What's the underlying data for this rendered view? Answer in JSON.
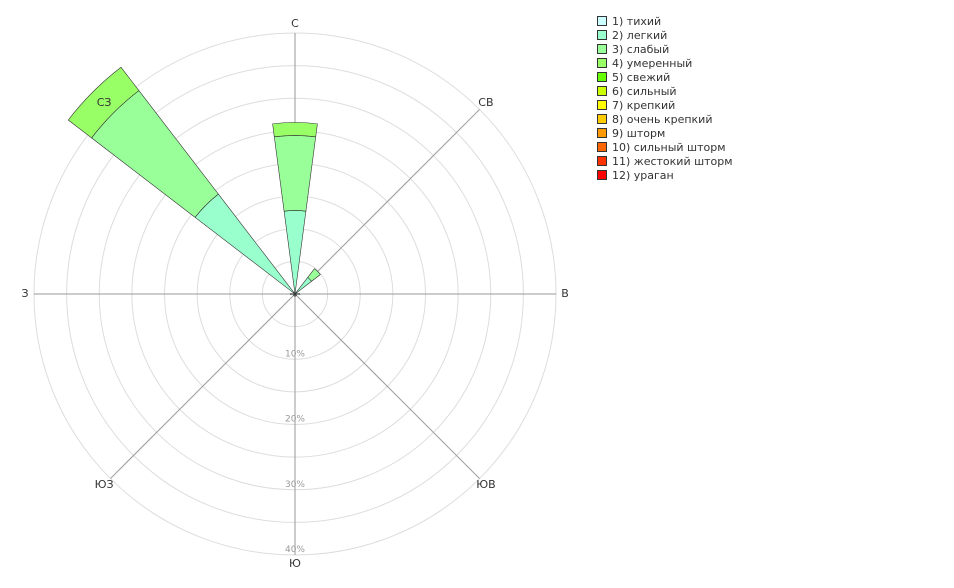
{
  "chart_data": {
    "type": "windrose",
    "rmax": 40,
    "ring_values": [
      10,
      20,
      30,
      40
    ],
    "ring_labels": [
      "10%",
      "20%",
      "30%",
      "40%"
    ],
    "directions": [
      "С",
      "СВ",
      "В",
      "ЮВ",
      "Ю",
      "ЮЗ",
      "З",
      "СЗ"
    ],
    "direction_angles_deg": [
      0,
      45,
      90,
      135,
      180,
      225,
      270,
      315
    ],
    "legend_position": "right",
    "series": [
      {
        "name": "1) тихий",
        "color": "#ccffff",
        "values": [
          0.3,
          0.2,
          0.2,
          0.1,
          0.1,
          0.1,
          0.2,
          0.3
        ]
      },
      {
        "name": "2) легкий",
        "color": "#99ffcc",
        "values": [
          12.5,
          3.0,
          0.5,
          0.2,
          0.3,
          0.2,
          0.5,
          19.0
        ]
      },
      {
        "name": "3) слабый",
        "color": "#99ff99",
        "values": [
          11.5,
          1.7,
          0.0,
          0.0,
          0.0,
          0.0,
          0.0,
          20.0
        ]
      },
      {
        "name": "4) умеренный",
        "color": "#99ff66",
        "values": [
          2.0,
          0.0,
          0.0,
          0.0,
          0.0,
          0.0,
          0.0,
          4.5
        ]
      },
      {
        "name": "5) свежий",
        "color": "#66ff00",
        "values": [
          0,
          0,
          0,
          0,
          0,
          0,
          0,
          0
        ]
      },
      {
        "name": "6) сильный",
        "color": "#ccff00",
        "values": [
          0,
          0,
          0,
          0,
          0,
          0,
          0,
          0
        ]
      },
      {
        "name": "7) крепкий",
        "color": "#ffff00",
        "values": [
          0,
          0,
          0,
          0,
          0,
          0,
          0,
          0
        ]
      },
      {
        "name": "8) очень крепкий",
        "color": "#ffcc00",
        "values": [
          0,
          0,
          0,
          0,
          0,
          0,
          0,
          0
        ]
      },
      {
        "name": "9) шторм",
        "color": "#ff9900",
        "values": [
          0,
          0,
          0,
          0,
          0,
          0,
          0,
          0
        ]
      },
      {
        "name": "10) сильный шторм",
        "color": "#ff6600",
        "values": [
          0,
          0,
          0,
          0,
          0,
          0,
          0,
          0
        ]
      },
      {
        "name": "11) жестокий шторм",
        "color": "#ff3300",
        "values": [
          0,
          0,
          0,
          0,
          0,
          0,
          0,
          0
        ]
      },
      {
        "name": "12) ураган",
        "color": "#ff0000",
        "values": [
          0,
          0,
          0,
          0,
          0,
          0,
          0,
          0
        ]
      }
    ]
  }
}
